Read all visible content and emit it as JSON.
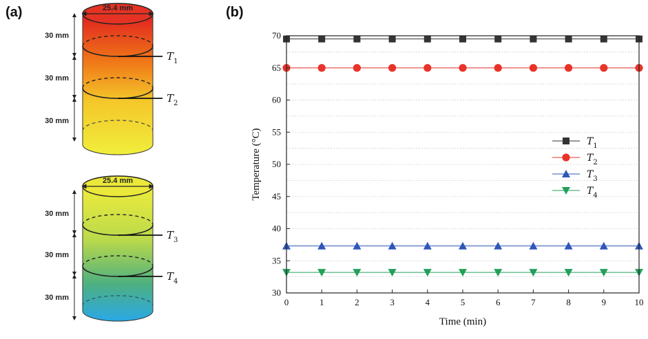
{
  "panel_a": {
    "label": "(a)",
    "diameter_label": "25.4 mm",
    "spacing_label": "30 mm",
    "sensors": [
      {
        "letter": "T",
        "sub": "1"
      },
      {
        "letter": "T",
        "sub": "2"
      },
      {
        "letter": "T",
        "sub": "3"
      },
      {
        "letter": "T",
        "sub": "4"
      }
    ],
    "top_cylinder_colors": [
      "#e02020",
      "#f07a18",
      "#f4c72a",
      "#f1ee3c"
    ],
    "bottom_cylinder_colors": [
      "#efec3c",
      "#b9d94b",
      "#4fb07f",
      "#2aa8e6"
    ]
  },
  "panel_b": {
    "label": "(b)"
  },
  "chart_data": {
    "type": "line",
    "xlabel": "Time (min)",
    "ylabel": "Temperature (°C)",
    "xlim": [
      0,
      10
    ],
    "ylim": [
      30,
      70
    ],
    "x_ticks": [
      0,
      1,
      2,
      3,
      4,
      5,
      6,
      7,
      8,
      9,
      10
    ],
    "y_ticks": [
      30,
      35,
      40,
      45,
      50,
      55,
      60,
      65,
      70
    ],
    "grid": true,
    "legend_position": "right-center",
    "x": [
      0,
      1,
      2,
      3,
      4,
      5,
      6,
      7,
      8,
      9,
      10
    ],
    "series": [
      {
        "name": "T1",
        "name_letter": "T",
        "name_sub": "1",
        "marker": "square",
        "color": "#333333",
        "values": [
          69.5,
          69.5,
          69.5,
          69.5,
          69.5,
          69.5,
          69.5,
          69.5,
          69.5,
          69.5,
          69.5
        ]
      },
      {
        "name": "T2",
        "name_letter": "T",
        "name_sub": "2",
        "marker": "circle",
        "color": "#e8332a",
        "values": [
          65.0,
          65.0,
          65.0,
          65.0,
          65.0,
          65.0,
          65.0,
          65.0,
          65.0,
          65.0,
          65.0
        ]
      },
      {
        "name": "T3",
        "name_letter": "T",
        "name_sub": "3",
        "marker": "triangle-up",
        "color": "#2f57b8",
        "values": [
          37.3,
          37.3,
          37.3,
          37.3,
          37.3,
          37.3,
          37.3,
          37.3,
          37.3,
          37.3,
          37.3
        ]
      },
      {
        "name": "T4",
        "name_letter": "T",
        "name_sub": "4",
        "marker": "triangle-down",
        "color": "#22a05a",
        "values": [
          33.2,
          33.2,
          33.2,
          33.2,
          33.2,
          33.2,
          33.2,
          33.2,
          33.2,
          33.2,
          33.2
        ]
      }
    ]
  }
}
